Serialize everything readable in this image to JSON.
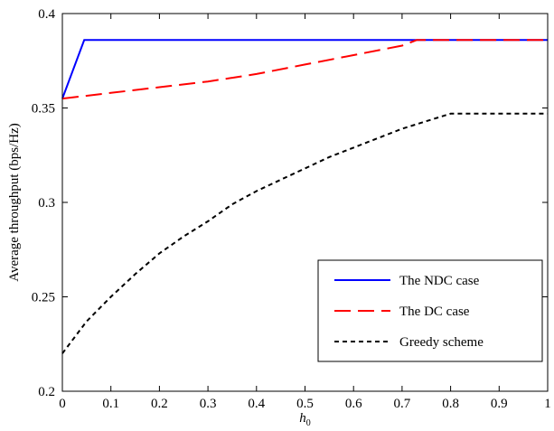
{
  "chart_data": {
    "type": "line",
    "xlabel": "h",
    "xlabel_subscript": "0",
    "ylabel": "Average throughput (bps/Hz)",
    "xlim": [
      0,
      1
    ],
    "ylim": [
      0.2,
      0.4
    ],
    "xticks": [
      0,
      0.1,
      0.2,
      0.3,
      0.4,
      0.5,
      0.6,
      0.7,
      0.8,
      0.9,
      1
    ],
    "xtick_labels": [
      "0",
      "0.1",
      "0.2",
      "0.3",
      "0.4",
      "0.5",
      "0.6",
      "0.7",
      "0.8",
      "0.9",
      "1"
    ],
    "yticks": [
      0.2,
      0.25,
      0.3,
      0.35,
      0.4
    ],
    "ytick_labels": [
      "0.2",
      "0.25",
      "0.3",
      "0.35",
      "0.4"
    ],
    "grid": false,
    "legend_position": "lower-right",
    "series": [
      {
        "name": "The NDC case",
        "color": "#0000ff",
        "style": "solid",
        "x": [
          0,
          0.045,
          0.1,
          0.2,
          0.3,
          0.4,
          0.5,
          0.6,
          0.7,
          0.8,
          0.9,
          1
        ],
        "y": [
          0.355,
          0.386,
          0.386,
          0.386,
          0.386,
          0.386,
          0.386,
          0.386,
          0.386,
          0.386,
          0.386,
          0.386
        ]
      },
      {
        "name": "The DC case",
        "color": "#ff0000",
        "style": "long-dash",
        "x": [
          0,
          0.1,
          0.2,
          0.3,
          0.35,
          0.4,
          0.5,
          0.6,
          0.7,
          0.73,
          0.8,
          0.9,
          1
        ],
        "y": [
          0.355,
          0.358,
          0.361,
          0.364,
          0.366,
          0.368,
          0.373,
          0.378,
          0.383,
          0.386,
          0.386,
          0.386,
          0.386
        ]
      },
      {
        "name": "Greedy scheme",
        "color": "#000000",
        "style": "short-dash",
        "x": [
          0,
          0.05,
          0.1,
          0.15,
          0.2,
          0.25,
          0.3,
          0.35,
          0.4,
          0.45,
          0.5,
          0.55,
          0.6,
          0.65,
          0.7,
          0.75,
          0.8,
          0.85,
          0.9,
          0.95,
          1
        ],
        "y": [
          0.22,
          0.237,
          0.25,
          0.262,
          0.273,
          0.282,
          0.29,
          0.299,
          0.306,
          0.312,
          0.318,
          0.324,
          0.329,
          0.334,
          0.339,
          0.343,
          0.347,
          0.347,
          0.347,
          0.347,
          0.347
        ]
      }
    ]
  }
}
